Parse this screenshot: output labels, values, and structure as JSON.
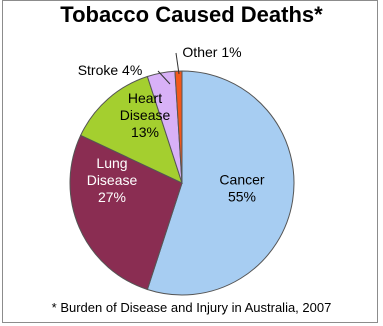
{
  "chart_data": {
    "type": "pie",
    "title": "Tobacco Caused Deaths*",
    "footnote": "* Burden of Disease and Injury in Australia, 2007",
    "slices": [
      {
        "label": "Cancer",
        "value": 55,
        "color": "#a7cdf2",
        "label_lines": [
          "Cancer",
          "55%"
        ]
      },
      {
        "label": "Lung Disease",
        "value": 27,
        "color": "#8a2d52",
        "label_lines": [
          "Lung",
          "Disease",
          "27%"
        ]
      },
      {
        "label": "Heart Disease",
        "value": 13,
        "color": "#a4cf2f",
        "label_lines": [
          "Heart",
          "Disease",
          "13%"
        ]
      },
      {
        "label": "Stroke",
        "value": 4,
        "color": "#d8b1f7",
        "label_lines": [
          "Stroke 4%"
        ]
      },
      {
        "label": "Other",
        "value": 1,
        "color": "#f2581b",
        "label_lines": [
          "Other 1%"
        ]
      }
    ]
  }
}
